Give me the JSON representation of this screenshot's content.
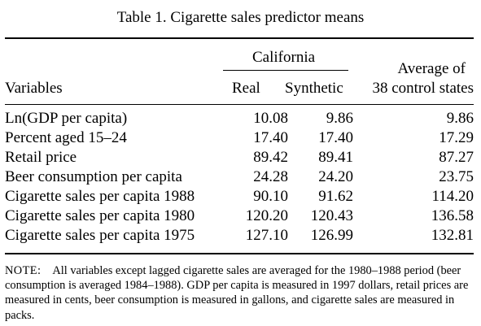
{
  "table": {
    "caption": "Table 1.  Cigarette sales predictor means",
    "header": {
      "variables": "Variables",
      "group": "California",
      "real": "Real",
      "synthetic": "Synthetic",
      "average_line1": "Average of",
      "average_line2": "38 control states"
    },
    "rows": [
      {
        "variable": "Ln(GDP per capita)",
        "real": "10.08",
        "synthetic": "9.86",
        "average": "9.86"
      },
      {
        "variable": "Percent aged 15–24",
        "real": "17.40",
        "synthetic": "17.40",
        "average": "17.29"
      },
      {
        "variable": "Retail price",
        "real": "89.42",
        "synthetic": "89.41",
        "average": "87.27"
      },
      {
        "variable": "Beer consumption per capita",
        "real": "24.28",
        "synthetic": "24.20",
        "average": "23.75"
      },
      {
        "variable": "Cigarette sales per capita 1988",
        "real": "90.10",
        "synthetic": "91.62",
        "average": "114.20"
      },
      {
        "variable": "Cigarette sales per capita 1980",
        "real": "120.20",
        "synthetic": "120.43",
        "average": "136.58"
      },
      {
        "variable": "Cigarette sales per capita 1975",
        "real": "127.10",
        "synthetic": "126.99",
        "average": "132.81"
      }
    ],
    "note_label": "NOTE:",
    "note_text": "All variables except lagged cigarette sales are averaged for the 1980–1988 period (beer consumption is averaged 1984–1988). GDP per capita is measured in 1997 dollars, retail prices are measured in cents, beer consumption is measured in gallons, and cigarette sales are measured in packs."
  }
}
